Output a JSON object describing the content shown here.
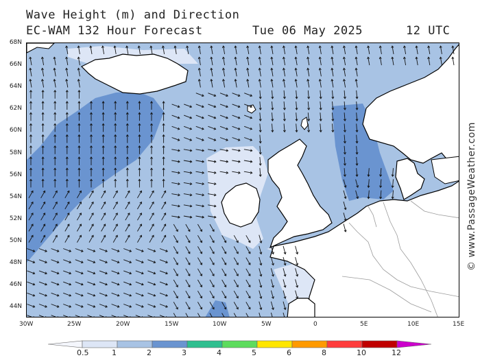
{
  "title": {
    "line1": "Wave Height (m) and Direction",
    "line2": "EC-WAM 132 Hour Forecast",
    "date": "Tue 06 May 2025",
    "time": "12 UTC"
  },
  "credit": "© www.PassageWeather.com",
  "axes": {
    "lat_labels": [
      "68N",
      "66N",
      "64N",
      "62N",
      "60N",
      "58N",
      "56N",
      "54N",
      "52N",
      "50N",
      "48N",
      "46N",
      "44N"
    ],
    "lon_labels": [
      "30W",
      "25W",
      "20W",
      "15W",
      "10W",
      "5W",
      "0",
      "5E",
      "10E",
      "15E"
    ]
  },
  "legend": {
    "labels": [
      "0.5",
      "1",
      "2",
      "3",
      "4",
      "5",
      "6",
      "8",
      "10",
      "12"
    ],
    "colors": [
      "#f4f6fc",
      "#dde6f6",
      "#a8c3e4",
      "#6a94d0",
      "#2fbf8f",
      "#5ddc5d",
      "#ffe600",
      "#ff9a00",
      "#ff3c3c",
      "#c00000",
      "#cc00cc"
    ]
  },
  "map_colors": {
    "sea_1_2": "#a8c3e4",
    "sea_2_3": "#6a94d0",
    "sea_05_1": "#dde6f6",
    "land": "#ffffff",
    "coast": "#000000",
    "border": "#9a9a9a"
  },
  "arrow_direction_note": ""
}
